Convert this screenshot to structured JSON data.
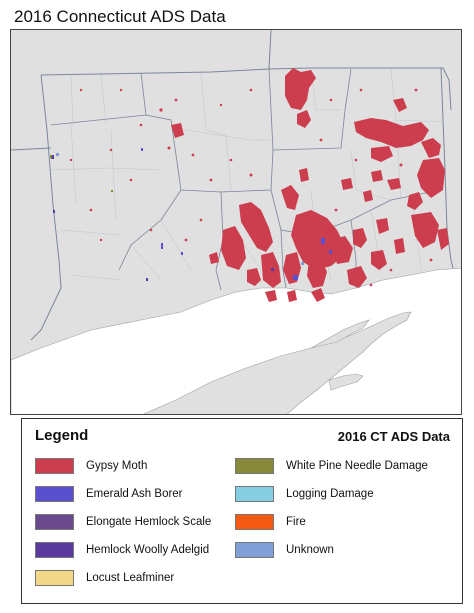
{
  "map": {
    "title": "2016 Connecticut ADS Data",
    "land_color": "#e0e0e0",
    "water_color": "#ffffff",
    "boundary_color": "#7a869a"
  },
  "legend": {
    "title": "Legend",
    "subtitle": "2016 CT ADS Data",
    "items": [
      {
        "label": "Gypsy Moth",
        "color": "#cc3d4e"
      },
      {
        "label": "Emerald Ash Borer",
        "color": "#5a4fcf"
      },
      {
        "label": "Elongate Hemlock Scale",
        "color": "#6a4a8c"
      },
      {
        "label": "Hemlock Woolly Adelgid",
        "color": "#5b3a9e"
      },
      {
        "label": "Locust Leafminer",
        "color": "#f2d98a"
      },
      {
        "label": "White Pine Needle Damage",
        "color": "#878a3a"
      },
      {
        "label": "Logging Damage",
        "color": "#85cde0"
      },
      {
        "label": "Fire",
        "color": "#f55a14"
      },
      {
        "label": "Unknown",
        "color": "#7f9fd6"
      }
    ]
  }
}
